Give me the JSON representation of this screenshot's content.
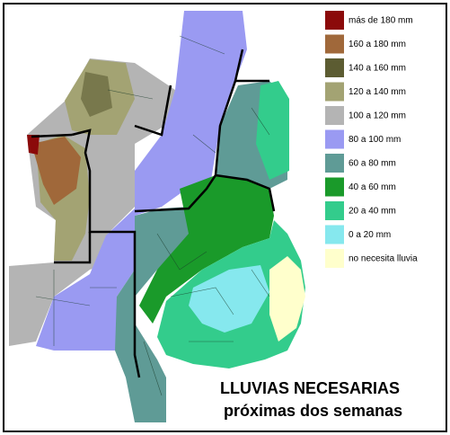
{
  "legend": [
    {
      "label": "más de 180 mm",
      "color": "#8b0a0a"
    },
    {
      "label": "160 a 180 mm",
      "color": "#a0683a"
    },
    {
      "label": "140 a 160 mm",
      "color": "#5c5c32"
    },
    {
      "label": "120 a 140 mm",
      "color": "#a3a373"
    },
    {
      "label": "100 a 120 mm",
      "color": "#b4b4b4"
    },
    {
      "label": "80 a 100 mm",
      "color": "#9a9af2"
    },
    {
      "label": "60 a 80 mm",
      "color": "#5f9b96"
    },
    {
      "label": "40 a 60 mm",
      "color": "#1a9a2a"
    },
    {
      "label": "20 a 40 mm",
      "color": "#33cc8c"
    },
    {
      "label": "0 a 20 mm",
      "color": "#86e8ee"
    },
    {
      "label": "no necesita lluvia",
      "color": "#ffffcc"
    }
  ],
  "title": {
    "line1": "LLUVIAS NECESARIAS",
    "line2": "próximas dos semanas"
  }
}
